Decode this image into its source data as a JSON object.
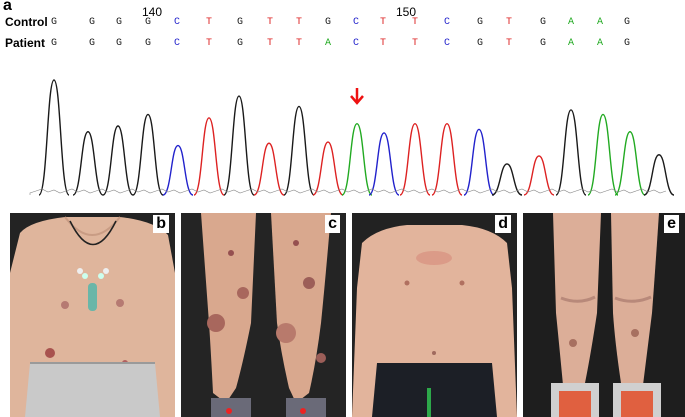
{
  "panel_a": {
    "letter": "a",
    "row_labels": {
      "control": "Control",
      "patient": "Patient"
    },
    "position_labels": [
      "140",
      "150"
    ],
    "control_sequence": [
      "G",
      "G",
      "G",
      "G",
      "C",
      "T",
      "G",
      "T",
      "T",
      "G",
      "C",
      "T",
      "T",
      "C",
      "G",
      "T",
      "G",
      "A",
      "A",
      "G"
    ],
    "patient_sequence": [
      "G",
      "G",
      "G",
      "G",
      "C",
      "T",
      "G",
      "T",
      "T",
      "A",
      "C",
      "T",
      "T",
      "C",
      "G",
      "T",
      "G",
      "A",
      "A",
      "G"
    ],
    "base_colors": {
      "G": "#1a1a1a",
      "C": "#2222cc",
      "T": "#dd2222",
      "A": "#22aa22"
    },
    "mutation_arrow_color": "#ee1111",
    "chromatogram_peaks": [
      {
        "base": "G",
        "height": 1.0
      },
      {
        "base": "G",
        "height": 0.55
      },
      {
        "base": "G",
        "height": 0.6
      },
      {
        "base": "G",
        "height": 0.7
      },
      {
        "base": "C",
        "height": 0.43
      },
      {
        "base": "T",
        "height": 0.67
      },
      {
        "base": "G",
        "height": 0.86
      },
      {
        "base": "T",
        "height": 0.45
      },
      {
        "base": "G",
        "height": 0.77
      },
      {
        "base": "T",
        "height": 0.46
      },
      {
        "base": "A",
        "height": 0.62
      },
      {
        "base": "C",
        "height": 0.54
      },
      {
        "base": "T",
        "height": 0.62
      },
      {
        "base": "T",
        "height": 0.62
      },
      {
        "base": "C",
        "height": 0.57
      },
      {
        "base": "G",
        "height": 0.27
      },
      {
        "base": "T",
        "height": 0.34
      },
      {
        "base": "G",
        "height": 0.74
      },
      {
        "base": "A",
        "height": 0.7
      },
      {
        "base": "A",
        "height": 0.55
      },
      {
        "base": "G",
        "height": 0.35
      }
    ]
  },
  "photos": [
    {
      "letter": "b"
    },
    {
      "letter": "c"
    },
    {
      "letter": "d"
    },
    {
      "letter": "e"
    }
  ]
}
